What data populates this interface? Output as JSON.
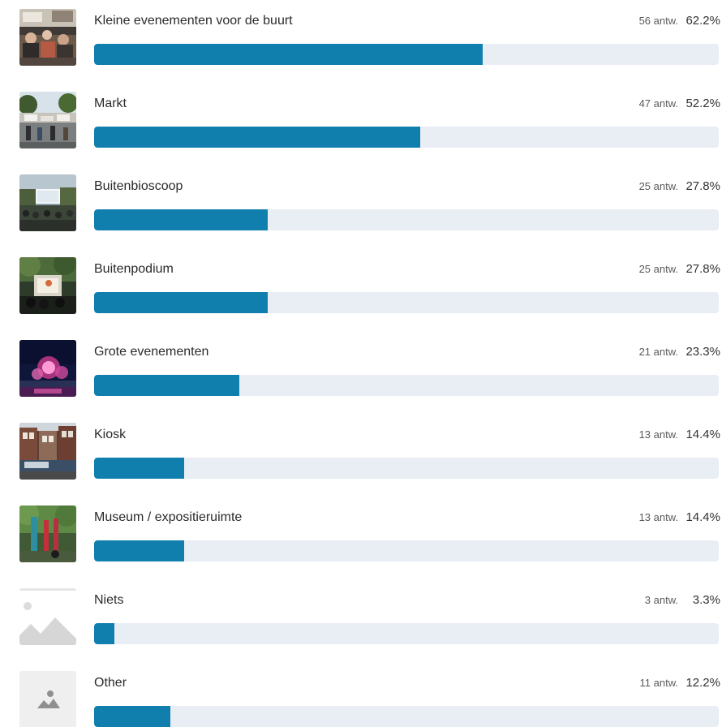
{
  "colors": {
    "bar_fill": "#117fae",
    "bar_track": "#e8eef4"
  },
  "options": [
    {
      "label": "Kleine evenementen voor de buurt",
      "count": "56 antw.",
      "percent": "62.2%",
      "fraction": 0.622,
      "image": "photo-outdoor-dining-icon"
    },
    {
      "label": "Markt",
      "count": "47 antw.",
      "percent": "52.2%",
      "fraction": 0.522,
      "image": "photo-market-icon"
    },
    {
      "label": "Buitenbioscoop",
      "count": "25 antw.",
      "percent": "27.8%",
      "fraction": 0.278,
      "image": "photo-outdoor-cinema-icon"
    },
    {
      "label": "Buitenpodium",
      "count": "25 antw.",
      "percent": "27.8%",
      "fraction": 0.278,
      "image": "photo-outdoor-stage-icon"
    },
    {
      "label": "Grote evenementen",
      "count": "21 antw.",
      "percent": "23.3%",
      "fraction": 0.233,
      "image": "photo-fireworks-icon"
    },
    {
      "label": "Kiosk",
      "count": "13 antw.",
      "percent": "14.4%",
      "fraction": 0.144,
      "image": "photo-kiosk-street-icon"
    },
    {
      "label": "Museum / expositieruimte",
      "count": "13 antw.",
      "percent": "14.4%",
      "fraction": 0.144,
      "image": "photo-art-installation-icon"
    },
    {
      "label": "Niets",
      "count": "3 antw.",
      "percent": "3.3%",
      "fraction": 0.033,
      "image": "image-placeholder-large-icon"
    },
    {
      "label": "Other",
      "count": "11 antw.",
      "percent": "12.2%",
      "fraction": 0.122,
      "image": "image-placeholder-small-icon"
    }
  ]
}
